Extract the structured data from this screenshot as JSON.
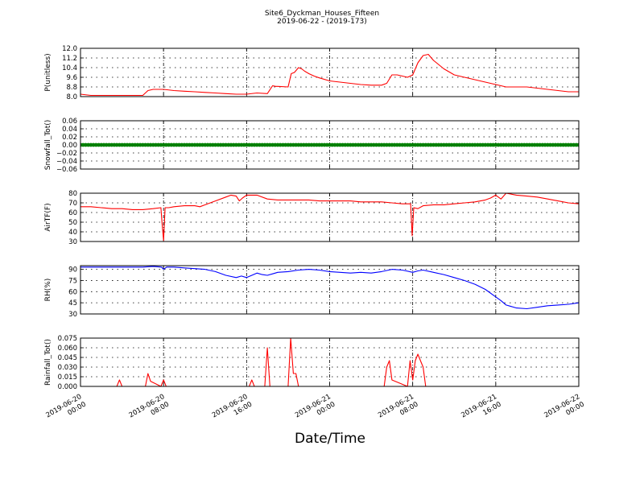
{
  "chart_data": {
    "title": "Site6_Dyckman_Houses_Fifteen",
    "subtitle": "2019-06-22 - (2019-173)",
    "xlabel": "Date/Time",
    "x_ticks": [
      [
        "2019-06-20",
        "00:00"
      ],
      [
        "2019-06-20",
        "08:00"
      ],
      [
        "2019-06-20",
        "16:00"
      ],
      [
        "2019-06-21",
        "00:00"
      ],
      [
        "2019-06-21",
        "08:00"
      ],
      [
        "2019-06-21",
        "16:00"
      ],
      [
        "2019-06-22",
        "00:00"
      ]
    ],
    "x_unit": "hours since 2019-06-20 00:00",
    "xlim": [
      0,
      48
    ],
    "grid": true,
    "panels": [
      {
        "type": "line",
        "ylabel": "P(unitless)",
        "ylim": [
          8.0,
          12.0
        ],
        "yticks": [
          "8.0",
          "8.8",
          "9.6",
          "10.4",
          "11.2",
          "12.0"
        ],
        "ytick_values": [
          8.0,
          8.8,
          9.6,
          10.4,
          11.2,
          12.0
        ],
        "color": "#ff0000",
        "x": [
          0,
          1,
          2,
          3,
          4,
          5,
          6,
          6.5,
          7,
          8,
          9,
          10,
          11,
          12,
          13,
          14,
          15,
          16,
          17,
          18,
          18.5,
          18.8,
          19,
          20,
          20.3,
          20.6,
          21,
          21.3,
          21.6,
          22,
          22.5,
          23,
          24,
          25,
          26,
          27,
          28,
          29,
          29.5,
          30,
          30.5,
          31,
          31.5,
          32,
          32.5,
          33,
          33.5,
          34,
          35,
          36,
          37,
          38,
          39,
          40,
          41,
          42,
          43,
          44,
          45,
          46,
          47,
          48
        ],
        "y": [
          8.2,
          8.1,
          8.1,
          8.1,
          8.1,
          8.1,
          8.1,
          8.5,
          8.6,
          8.6,
          8.5,
          8.45,
          8.4,
          8.35,
          8.3,
          8.25,
          8.2,
          8.2,
          8.3,
          8.25,
          8.9,
          8.85,
          8.85,
          8.8,
          9.9,
          10.0,
          10.4,
          10.3,
          10.1,
          9.9,
          9.7,
          9.55,
          9.3,
          9.2,
          9.1,
          9.0,
          8.95,
          8.95,
          9.1,
          9.8,
          9.8,
          9.7,
          9.6,
          9.8,
          10.8,
          11.4,
          11.5,
          11.0,
          10.3,
          9.8,
          9.6,
          9.4,
          9.2,
          9.0,
          8.8,
          8.8,
          8.8,
          8.7,
          8.6,
          8.5,
          8.4,
          8.4
        ]
      },
      {
        "type": "scatter",
        "ylabel": "Snowfall_Tot()",
        "ylim": [
          -0.06,
          0.06
        ],
        "yticks": [
          "−0.06",
          "−0.04",
          "−0.02",
          "0.00",
          "0.02",
          "0.04",
          "0.06"
        ],
        "ytick_values": [
          -0.06,
          -0.04,
          -0.02,
          0.0,
          0.02,
          0.04,
          0.06
        ],
        "color": "#008000",
        "x_step_hours": 0.25,
        "constant_value": 0.0
      },
      {
        "type": "line",
        "ylabel": "AirTF(F)",
        "ylim": [
          30,
          80
        ],
        "yticks": [
          "30",
          "40",
          "50",
          "60",
          "70",
          "80"
        ],
        "ytick_values": [
          30,
          40,
          50,
          60,
          70,
          80
        ],
        "color": "#ff0000",
        "x": [
          0,
          1,
          2,
          3,
          4,
          5,
          6,
          7,
          7.75,
          7.85,
          8,
          8.15,
          8.5,
          9,
          10,
          11,
          11.5,
          12,
          13,
          14,
          14.5,
          15,
          15.3,
          15.6,
          16,
          17,
          18,
          19,
          20,
          21,
          22,
          23,
          24,
          25,
          26,
          27,
          28,
          29,
          30,
          31,
          31.8,
          31.95,
          32.1,
          32.5,
          33,
          34,
          35,
          36,
          37,
          38,
          39,
          39.5,
          40,
          40.5,
          41,
          42,
          43,
          44,
          45,
          46,
          47,
          48
        ],
        "y": [
          66,
          66,
          65,
          64,
          64,
          63,
          63,
          64,
          65,
          50,
          31,
          65,
          65,
          66,
          67,
          67,
          66,
          68,
          72,
          76,
          78,
          77,
          72,
          75,
          78,
          78,
          74,
          73,
          73,
          73,
          73,
          72,
          72,
          72,
          72,
          71,
          71,
          71,
          70,
          69,
          69,
          36,
          65,
          64,
          67,
          68,
          68,
          69,
          70,
          71,
          73,
          75,
          78,
          74,
          80,
          78,
          77,
          76,
          74,
          72,
          70,
          69
        ]
      },
      {
        "type": "line",
        "ylabel": "RH(%)",
        "ylim": [
          30,
          95
        ],
        "yticks": [
          "30",
          "45",
          "60",
          "75",
          "90"
        ],
        "ytick_values": [
          30,
          45,
          60,
          75,
          90
        ],
        "color": "#0000ff",
        "x": [
          0,
          2,
          4,
          6,
          7,
          7.8,
          8,
          8.3,
          9,
          10,
          11,
          12,
          13,
          14,
          15,
          15.5,
          16,
          16.5,
          17,
          17.5,
          18,
          18.5,
          19,
          20,
          21,
          22,
          23,
          24,
          25,
          26,
          27,
          28,
          29,
          30,
          31,
          32,
          32.5,
          33,
          34,
          35,
          36,
          37,
          38,
          39,
          40,
          40.5,
          41,
          42,
          43,
          44,
          45,
          46,
          47,
          48
        ],
        "y": [
          93,
          93,
          93,
          93,
          94,
          93,
          90,
          93,
          93,
          92,
          91,
          90,
          87,
          82,
          79,
          81,
          79,
          82,
          85,
          83,
          82,
          84,
          86,
          87,
          89,
          90,
          89,
          87,
          86,
          85,
          86,
          85,
          87,
          90,
          89,
          86,
          88,
          89,
          86,
          83,
          79,
          75,
          70,
          63,
          53,
          48,
          42,
          38,
          37,
          39,
          41,
          42,
          43,
          45
        ]
      },
      {
        "type": "line",
        "ylabel": "Rainfall_Tot()",
        "ylim": [
          0,
          0.075
        ],
        "yticks": [
          "0.000",
          "0.015",
          "0.030",
          "0.045",
          "0.060",
          "0.075"
        ],
        "ytick_values": [
          0.0,
          0.015,
          0.03,
          0.045,
          0.06,
          0.075
        ],
        "color": "#ff0000",
        "x": [
          0,
          3.5,
          3.75,
          4,
          6.25,
          6.5,
          6.75,
          7.75,
          8,
          8.25,
          16.25,
          16.5,
          16.75,
          17.75,
          18,
          18.25,
          20,
          20.25,
          20.5,
          20.75,
          21,
          29.25,
          29.5,
          29.75,
          30,
          31.5,
          31.75,
          32,
          32.25,
          32.5,
          32.75,
          33,
          33.25,
          48
        ],
        "y": [
          0,
          0,
          0.01,
          0,
          0,
          0.02,
          0.008,
          0,
          0.01,
          0,
          0,
          0.01,
          0,
          0,
          0.06,
          0,
          0,
          0.075,
          0.02,
          0.02,
          0,
          0,
          0.03,
          0.04,
          0.01,
          0,
          0.04,
          0.01,
          0.04,
          0.05,
          0.04,
          0.03,
          0,
          0
        ]
      }
    ]
  }
}
